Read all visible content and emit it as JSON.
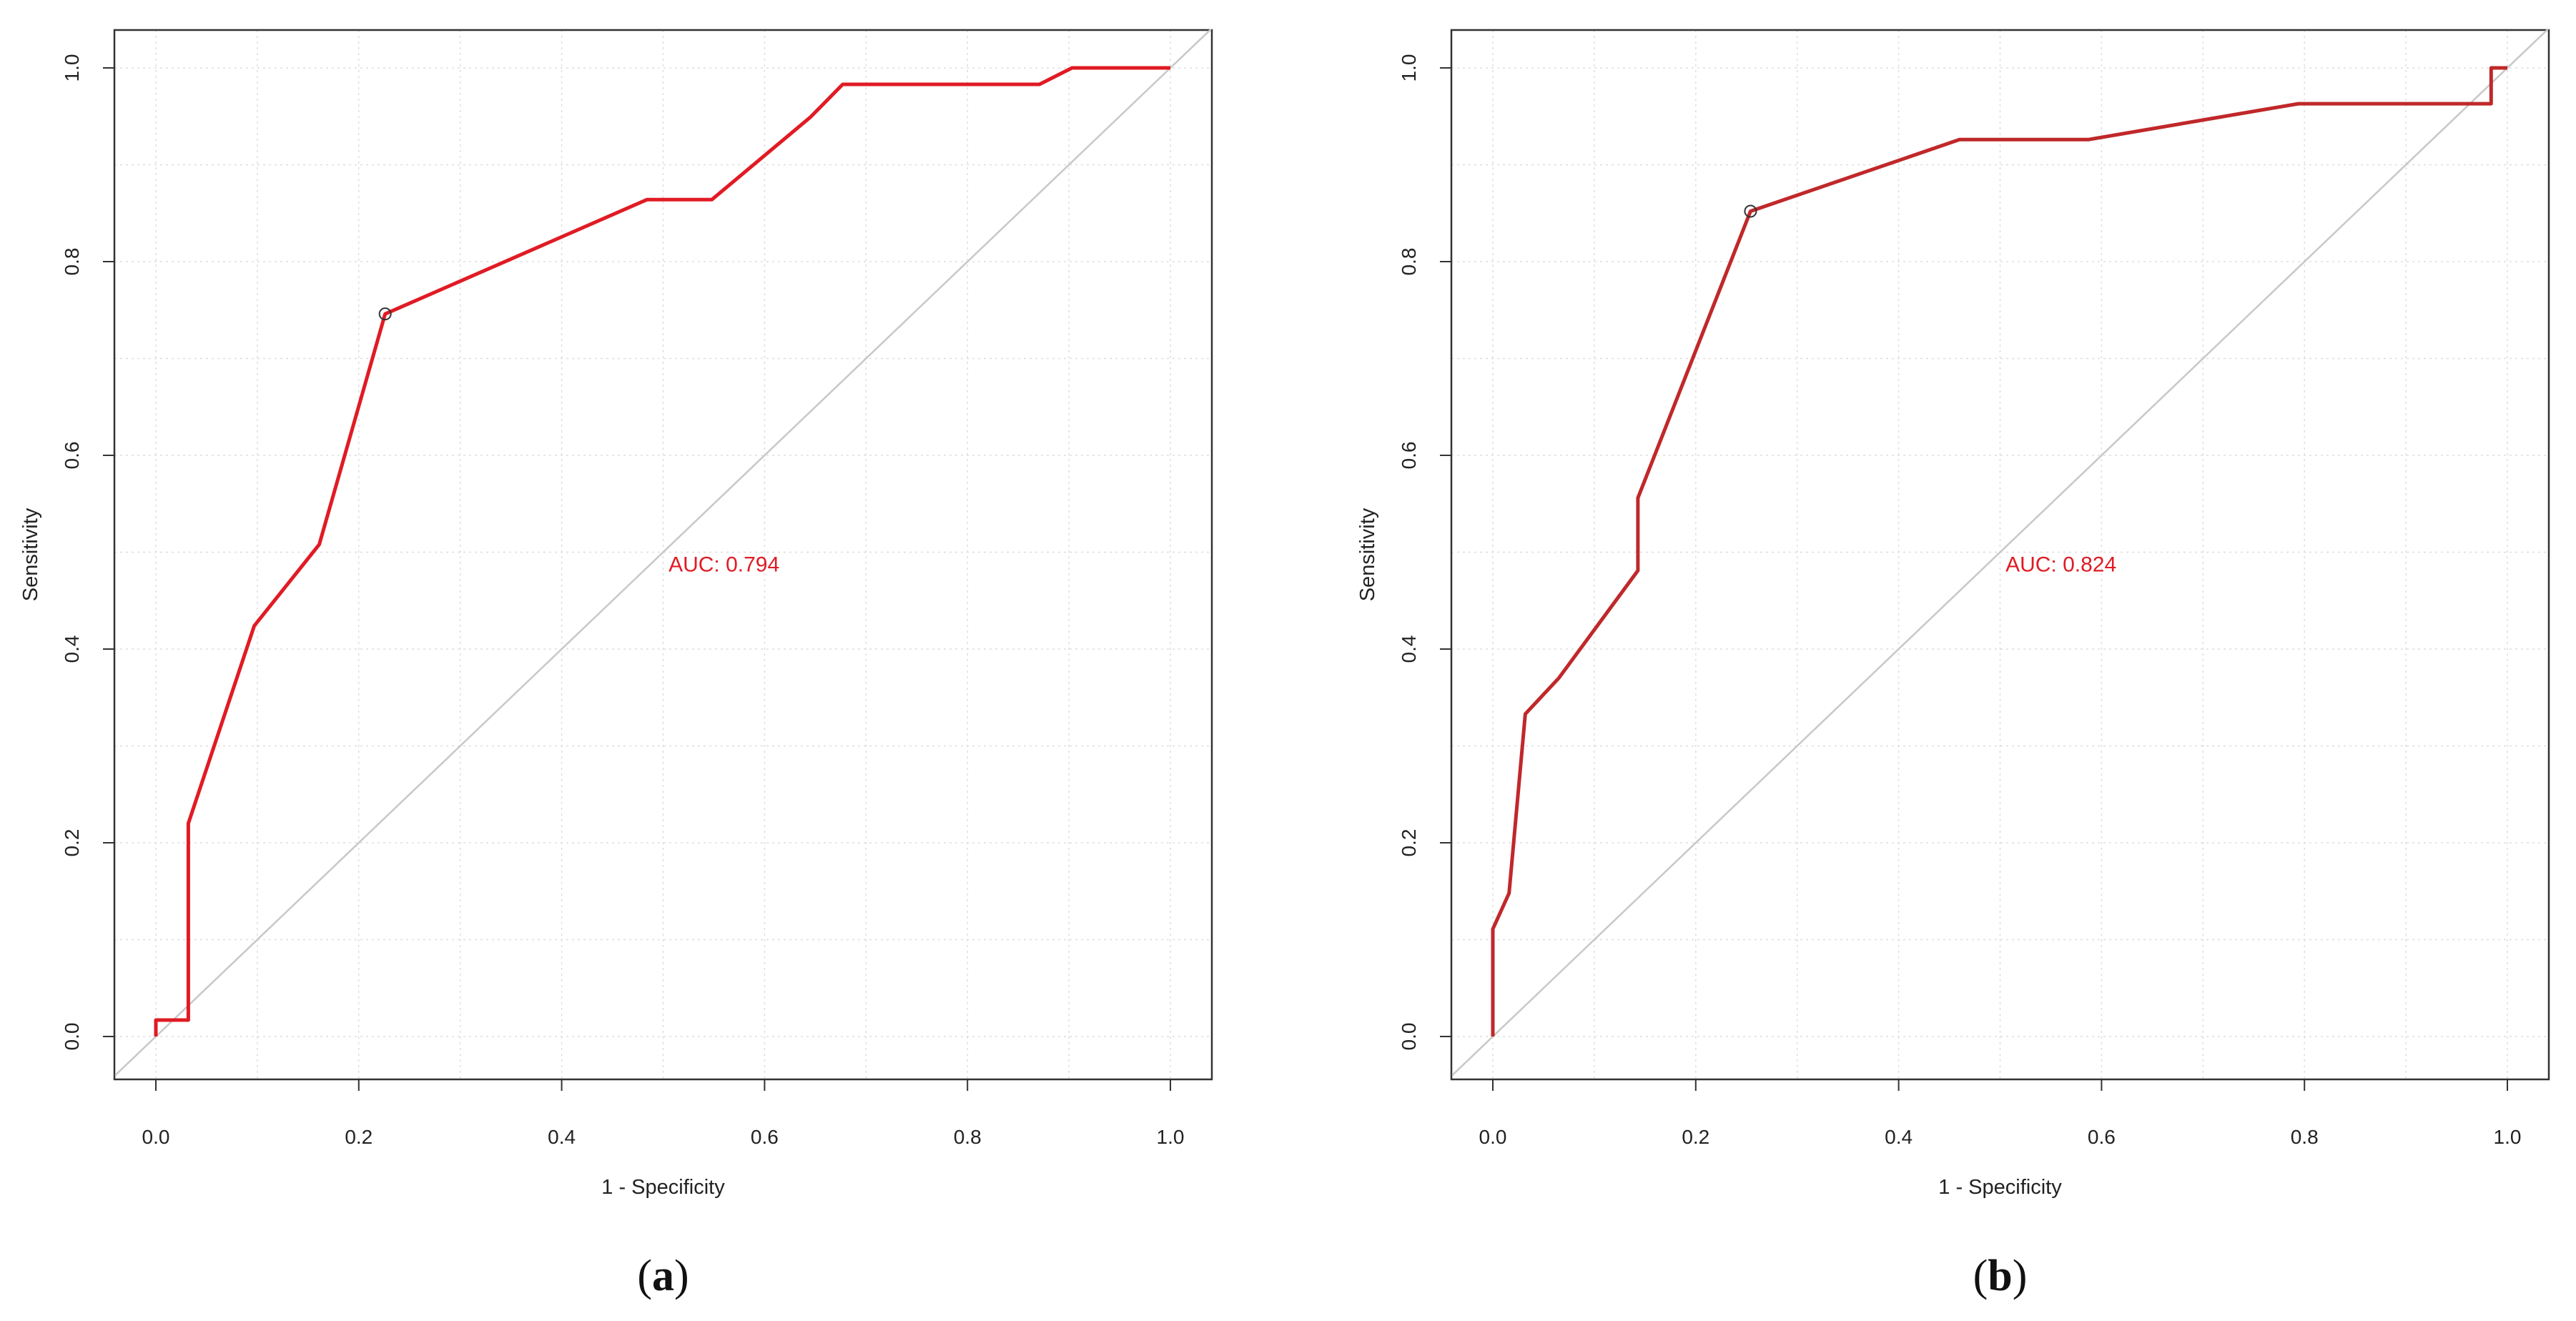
{
  "chart_data": [
    {
      "type": "line",
      "panel_label": "a",
      "xlabel": "1 - Specificity",
      "ylabel": "Sensitivity",
      "xlim": [
        0,
        1
      ],
      "ylim": [
        0,
        1
      ],
      "xticks": [
        "0.0",
        "0.2",
        "0.4",
        "0.6",
        "0.8",
        "1.0"
      ],
      "yticks": [
        "0.0",
        "0.2",
        "0.4",
        "0.6",
        "0.8",
        "1.0"
      ],
      "grid": true,
      "auc_text": "AUC: 0.794",
      "auc_text_position": [
        0.56,
        0.48
      ],
      "series": [
        {
          "name": "ROC",
          "x": [
            0.0,
            0.0,
            0.032,
            0.032,
            0.097,
            0.161,
            0.161,
            0.226,
            0.484,
            0.548,
            0.645,
            0.677,
            0.871,
            0.903,
            1.0
          ],
          "y": [
            0.0,
            0.017,
            0.017,
            0.22,
            0.424,
            0.508,
            0.508,
            0.746,
            0.864,
            0.864,
            0.949,
            0.983,
            0.983,
            1.0,
            1.0
          ]
        },
        {
          "name": "Reference",
          "x": [
            0,
            1
          ],
          "y": [
            0,
            1
          ]
        }
      ],
      "optimal_point": {
        "x": 0.226,
        "y": 0.746
      },
      "colors": {
        "roc": "#e01b24",
        "reference": "#c8c8c8",
        "auc_text": "#e01b24"
      }
    },
    {
      "type": "line",
      "panel_label": "b",
      "xlabel": "1 - Specificity",
      "ylabel": "Sensitivity",
      "xlim": [
        0,
        1
      ],
      "ylim": [
        0,
        1
      ],
      "xticks": [
        "0.0",
        "0.2",
        "0.4",
        "0.6",
        "0.8",
        "1.0"
      ],
      "yticks": [
        "0.0",
        "0.2",
        "0.4",
        "0.6",
        "0.8",
        "1.0"
      ],
      "grid": true,
      "auc_text": "AUC: 0.824",
      "auc_text_position": [
        0.56,
        0.48
      ],
      "series": [
        {
          "name": "ROC",
          "x": [
            0.0,
            0.0,
            0.016,
            0.032,
            0.065,
            0.143,
            0.143,
            0.254,
            0.46,
            0.587,
            0.794,
            0.984,
            0.984,
            1.0
          ],
          "y": [
            0.0,
            0.111,
            0.148,
            0.333,
            0.37,
            0.481,
            0.556,
            0.852,
            0.926,
            0.926,
            0.963,
            0.963,
            1.0,
            1.0
          ]
        },
        {
          "name": "Reference",
          "x": [
            0,
            1
          ],
          "y": [
            0,
            1
          ]
        }
      ],
      "optimal_point": {
        "x": 0.254,
        "y": 0.852
      },
      "colors": {
        "roc": "#c0282a",
        "reference": "#c8c8c8",
        "auc_text": "#e01b24"
      }
    }
  ]
}
